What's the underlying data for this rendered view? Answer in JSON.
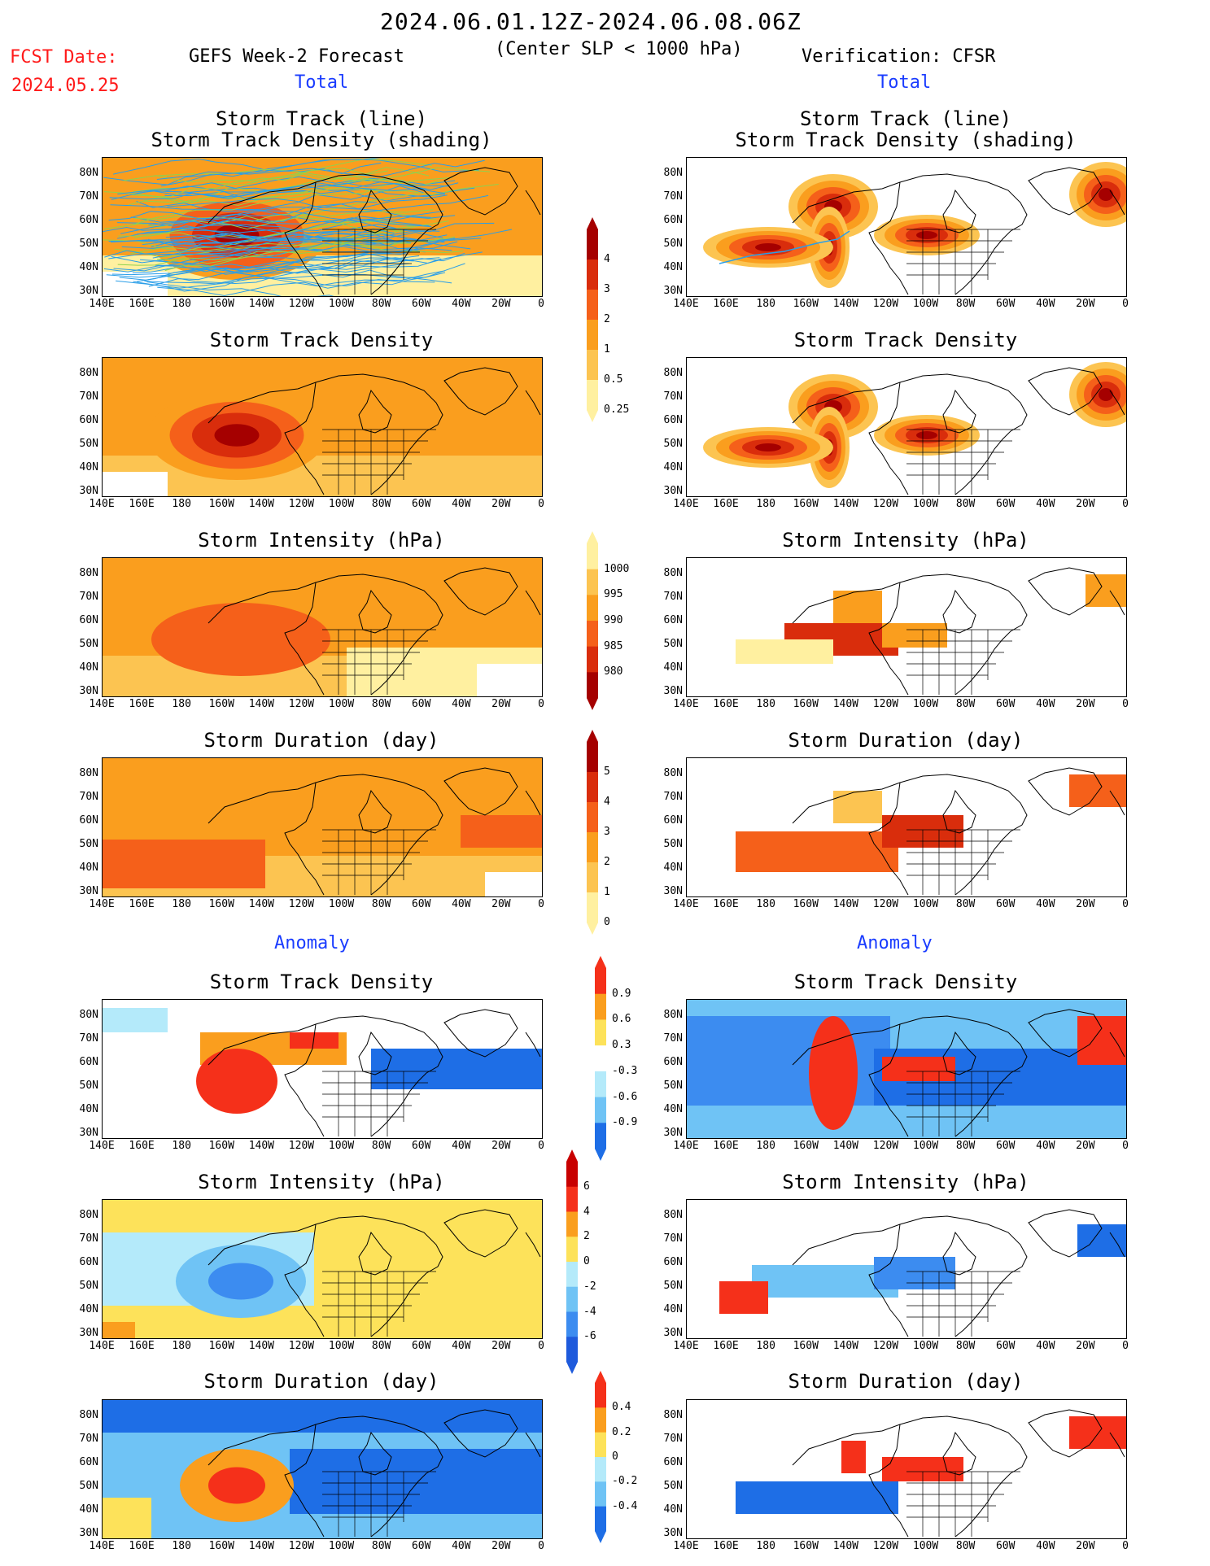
{
  "header": {
    "period": "2024.06.01.12Z-2024.06.08.06Z",
    "criterion": "(Center SLP < 1000 hPa)",
    "fcst_label": "FCST Date:",
    "fcst_date": "2024.05.25",
    "left_model": "GEFS Week-2 Forecast",
    "right_model": "Verification: CFSR",
    "total_label": "Total",
    "anomaly_label": "Anomaly"
  },
  "panel_titles": {
    "track_line": "Storm Track (line)",
    "track_shading": "Storm Track Density (shading)",
    "density": "Storm Track Density",
    "intensity": "Storm Intensity (hPa)",
    "duration": "Storm Duration (day)"
  },
  "axes": {
    "lat_labels": [
      "80N",
      "70N",
      "60N",
      "50N",
      "40N",
      "30N"
    ],
    "lon_labels": [
      "140E",
      "160E",
      "180",
      "160W",
      "140W",
      "120W",
      "100W",
      "80W",
      "60W",
      "40W",
      "20W",
      "0"
    ]
  },
  "colorbars": {
    "density_total": {
      "labels": [
        "4",
        "3",
        "2",
        "1",
        "0.5",
        "0.25"
      ],
      "colors": [
        "#a50000",
        "#d92d0c",
        "#f5601a",
        "#fa9e1e",
        "#fcc451",
        "#fff0a0"
      ]
    },
    "intensity_total": {
      "labels": [
        "1000",
        "995",
        "990",
        "985",
        "980"
      ],
      "colors": [
        "#fff0a0",
        "#fcc451",
        "#fa9e1e",
        "#f5601a",
        "#d92d0c",
        "#a50000"
      ]
    },
    "duration_total": {
      "labels": [
        "5",
        "4",
        "3",
        "2",
        "1",
        "0"
      ],
      "colors": [
        "#a50000",
        "#d92d0c",
        "#f5601a",
        "#fa9e1e",
        "#fcc451",
        "#fff0a0"
      ]
    },
    "density_anom": {
      "labels": [
        "0.9",
        "0.6",
        "0.3",
        "-0.3",
        "-0.6",
        "-0.9"
      ],
      "colors": [
        "#f5301a",
        "#fa9e1e",
        "#fde25a",
        "#ffffff",
        "#b4eafa",
        "#6fc3f5",
        "#1e6ee6"
      ]
    },
    "intensity_anom": {
      "labels": [
        "6",
        "4",
        "2",
        "0",
        "-2",
        "-4",
        "-6"
      ],
      "colors": [
        "#c80000",
        "#f5301a",
        "#fa9e1e",
        "#fde25a",
        "#b4eafa",
        "#6fc3f5",
        "#3c8cf0",
        "#1e5adc"
      ]
    },
    "duration_anom": {
      "labels": [
        "0.4",
        "0.2",
        "0",
        "-0.2",
        "-0.4"
      ],
      "colors": [
        "#f5301a",
        "#fa9e1e",
        "#fde25a",
        "#b4eafa",
        "#6fc3f5",
        "#1e6ee6"
      ]
    }
  }
}
